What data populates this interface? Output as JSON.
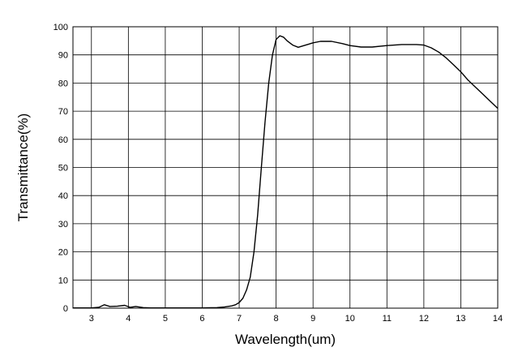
{
  "chart_data": {
    "type": "line",
    "title": "",
    "xlabel": "Wavelength(um)",
    "ylabel": "Transmittance(%)",
    "xlim": [
      2.5,
      14
    ],
    "ylim": [
      0,
      100
    ],
    "grid": true,
    "x_ticks": [
      "3",
      "4",
      "5",
      "6",
      "7",
      "8",
      "9",
      "10",
      "11",
      "12",
      "13",
      "14"
    ],
    "y_ticks": [
      "0",
      "10",
      "20",
      "30",
      "40",
      "50",
      "60",
      "70",
      "80",
      "90",
      "100"
    ],
    "series": [
      {
        "x": [
          2.5,
          3.0,
          3.2,
          3.35,
          3.5,
          3.7,
          3.9,
          4.05,
          4.2,
          4.4,
          4.6,
          5.0,
          5.5,
          6.0,
          6.4,
          6.6,
          6.8,
          6.9,
          7.0,
          7.1,
          7.2,
          7.3,
          7.4,
          7.5,
          7.6,
          7.7,
          7.8,
          7.9,
          8.0,
          8.1,
          8.2,
          8.3,
          8.45,
          8.6,
          8.8,
          9.0,
          9.2,
          9.5,
          9.8,
          10.0,
          10.3,
          10.6,
          11.0,
          11.4,
          11.8,
          12.0,
          12.2,
          12.4,
          12.6,
          12.8,
          13.0,
          13.2,
          13.4,
          13.6,
          13.8,
          14.0
        ],
        "y": [
          0.1,
          0.1,
          0.3,
          1.2,
          0.6,
          0.7,
          1.0,
          0.3,
          0.6,
          0.2,
          0.1,
          0.1,
          0.1,
          0.1,
          0.2,
          0.4,
          0.8,
          1.2,
          2.0,
          3.5,
          6.5,
          11.0,
          20.0,
          33.0,
          50.0,
          66.0,
          80.0,
          90.0,
          95.5,
          96.8,
          96.3,
          95.0,
          93.5,
          92.7,
          93.5,
          94.3,
          94.8,
          94.8,
          94.0,
          93.3,
          92.8,
          92.8,
          93.3,
          93.7,
          93.7,
          93.5,
          92.5,
          91.0,
          89.0,
          86.5,
          84.0,
          81.0,
          78.5,
          76.0,
          73.5,
          71.0
        ]
      }
    ]
  }
}
